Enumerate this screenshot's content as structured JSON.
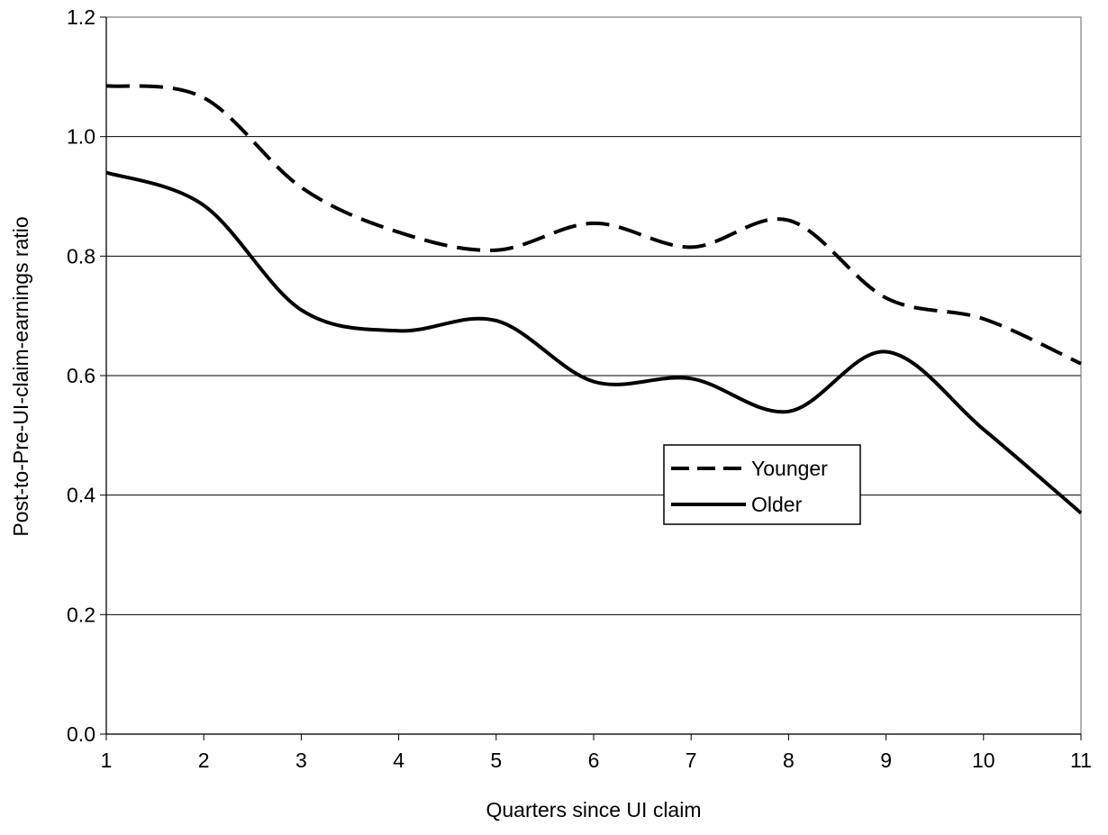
{
  "chart_data": {
    "type": "line",
    "xlabel": "Quarters since UI claim",
    "ylabel": "Post-to-Pre-UI-claim-earnings ratio",
    "x": [
      1,
      2,
      3,
      4,
      5,
      6,
      7,
      8,
      9,
      10,
      11
    ],
    "xlim": [
      1,
      11
    ],
    "ylim": [
      0,
      1.2
    ],
    "yticks": [
      "0.0",
      "0.2",
      "0.4",
      "0.6",
      "0.8",
      "1.0",
      "1.2"
    ],
    "xticks": [
      "1",
      "2",
      "3",
      "4",
      "5",
      "6",
      "7",
      "8",
      "9",
      "10",
      "11"
    ],
    "grid": "horizontal",
    "legend_position": "center-right",
    "series": [
      {
        "name": "Younger",
        "style": "dashed",
        "color": "#000000",
        "values": [
          1.085,
          1.065,
          0.915,
          0.84,
          0.81,
          0.855,
          0.815,
          0.86,
          0.73,
          0.695,
          0.62
        ]
      },
      {
        "name": "Older",
        "style": "solid",
        "color": "#000000",
        "values": [
          0.94,
          0.885,
          0.71,
          0.675,
          0.692,
          0.59,
          0.595,
          0.54,
          0.64,
          0.51,
          0.37
        ]
      }
    ]
  }
}
